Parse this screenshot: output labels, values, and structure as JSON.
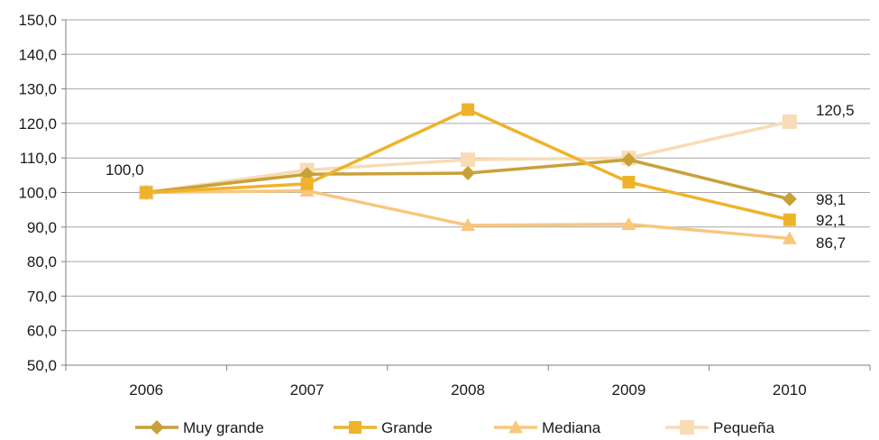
{
  "chart_data": {
    "type": "line",
    "categories": [
      "2006",
      "2007",
      "2008",
      "2009",
      "2010"
    ],
    "ylim": [
      50,
      150
    ],
    "yticks": [
      "50,0",
      "60,0",
      "70,0",
      "80,0",
      "90,0",
      "100,0",
      "110,0",
      "120,0",
      "130,0",
      "140,0",
      "150,0"
    ],
    "grid": true,
    "legend_position": "bottom",
    "series": [
      {
        "name": "Muy grande",
        "values": [
          100.0,
          105.3,
          105.6,
          109.5,
          98.1
        ],
        "color": "#c9a13a",
        "marker": "diamond"
      },
      {
        "name": "Grande",
        "values": [
          100.0,
          102.5,
          124.0,
          103.0,
          92.1
        ],
        "color": "#efb32a",
        "marker": "square"
      },
      {
        "name": "Mediana",
        "values": [
          100.0,
          100.5,
          90.5,
          90.8,
          86.7
        ],
        "color": "#f8c77c",
        "marker": "triangle"
      },
      {
        "name": "Pequeña",
        "values": [
          100.0,
          106.5,
          109.5,
          110.0,
          120.5
        ],
        "color": "#f8dcb6",
        "marker": "square-large"
      }
    ],
    "annotations": [
      {
        "text": "100,0"
      },
      {
        "text": "98,1"
      },
      {
        "text": "92,1"
      },
      {
        "text": "86,7"
      },
      {
        "text": "120,5"
      }
    ]
  }
}
